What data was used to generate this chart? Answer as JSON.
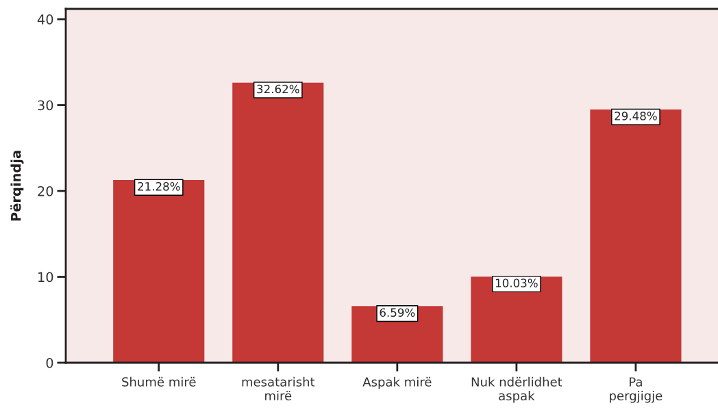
{
  "chart_data": {
    "type": "bar",
    "ylabel": "Përqindja",
    "categories": [
      "Shumë mirë",
      "mesatarisht\nmirë",
      "Aspak mirë",
      "Nuk ndërlidhet\naspak",
      "Pa\npergjigje"
    ],
    "values": [
      21.28,
      32.62,
      6.59,
      10.03,
      29.48
    ],
    "value_labels": [
      "21.28%",
      "32.62%",
      "6.59%",
      "10.03%",
      "29.48%"
    ],
    "color": "#c43836",
    "ylim": [
      0,
      41.2
    ],
    "yticks": [
      0,
      10,
      20,
      30,
      40
    ],
    "grid": false,
    "legend": false
  }
}
